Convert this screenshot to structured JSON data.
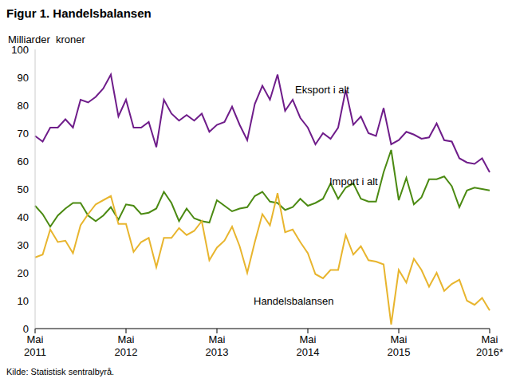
{
  "chart_data": {
    "type": "line",
    "title": "Figur 1. Handelsbalansen",
    "y_label": "Milliarder  kroner",
    "source": "Kilde: Statistisk sentralbyrå.",
    "categories": [
      "Mai 2011",
      null,
      null,
      null,
      null,
      null,
      null,
      null,
      null,
      null,
      null,
      null,
      "Mai 2012",
      null,
      null,
      null,
      null,
      null,
      null,
      null,
      null,
      null,
      null,
      null,
      "Mai 2013",
      null,
      null,
      null,
      null,
      null,
      null,
      null,
      null,
      null,
      null,
      null,
      "Mai 2014",
      null,
      null,
      null,
      null,
      null,
      null,
      null,
      null,
      null,
      null,
      null,
      "Mai 2015",
      null,
      null,
      null,
      null,
      null,
      null,
      null,
      null,
      null,
      null,
      null,
      "Mai 2016*"
    ],
    "series": [
      {
        "name": "Eksport i alt",
        "color": "#6f1d8a",
        "values": [
          69,
          67,
          72,
          72,
          75,
          72,
          82,
          81,
          83,
          86,
          91,
          76,
          82,
          72,
          72,
          74,
          65,
          82,
          77,
          74.5,
          76.5,
          74.5,
          77,
          70.5,
          73,
          74,
          79.5,
          73,
          67.5,
          80.5,
          87,
          82,
          91,
          78,
          82,
          75.5,
          72,
          66,
          70,
          68,
          72,
          85.5,
          73,
          76,
          70,
          69,
          79,
          66,
          67.5,
          70.5,
          69.5,
          68,
          68.5,
          73.5,
          67.5,
          67,
          61,
          59.5,
          59,
          61,
          56
        ]
      },
      {
        "name": "Import i alt",
        "color": "#4b8a12",
        "values": [
          44,
          41,
          36.5,
          40.5,
          43,
          45,
          45,
          40.5,
          38.5,
          40.5,
          43.5,
          39,
          44.5,
          44,
          41,
          41.5,
          43,
          49,
          45,
          38.5,
          43,
          39.5,
          38.5,
          38,
          46,
          44,
          42,
          43,
          43.5,
          47.5,
          49,
          45.5,
          45,
          42.5,
          43.5,
          46.5,
          44,
          45,
          46.5,
          52,
          46.5,
          50.5,
          52,
          46.5,
          45.5,
          45.5,
          56,
          64,
          46,
          54,
          44.5,
          47,
          53.5,
          53.5,
          54.5,
          51,
          43.5,
          49.5,
          50.5,
          50,
          49.5
        ]
      },
      {
        "name": "Handelsbalansen",
        "color": "#e8b52e",
        "values": [
          25.5,
          26.5,
          35.5,
          31,
          31.5,
          27,
          37,
          41,
          44.5,
          46,
          47.5,
          37.5,
          37.5,
          27.5,
          31,
          32.5,
          22,
          32.5,
          32.5,
          36,
          33.5,
          35,
          38.5,
          24.5,
          29,
          31.5,
          36.5,
          29.5,
          20,
          31,
          41,
          37,
          48.5,
          34.5,
          35.5,
          31,
          27,
          19.5,
          18,
          21,
          21,
          33.5,
          26.5,
          29.5,
          24.5,
          24,
          23,
          1.5,
          21,
          16.5,
          25,
          21,
          15,
          20,
          13.5,
          16,
          17.5,
          10,
          8.5,
          11,
          6.5
        ]
      }
    ],
    "ylim": [
      0,
      100
    ],
    "yticks": [
      0,
      10,
      20,
      30,
      40,
      50,
      60,
      70,
      80,
      90,
      100
    ],
    "grid": false
  }
}
